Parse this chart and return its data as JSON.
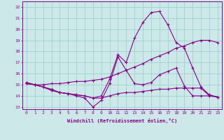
{
  "xlabel": "Windchill (Refroidissement éolien,°C)",
  "bg_color": "#cce8e8",
  "line_color": "#880088",
  "grid_color": "#99cccc",
  "xlim": [
    -0.5,
    23.5
  ],
  "ylim": [
    12.8,
    22.5
  ],
  "xticks": [
    0,
    1,
    2,
    3,
    4,
    5,
    6,
    7,
    8,
    9,
    10,
    11,
    12,
    13,
    14,
    15,
    16,
    17,
    18,
    19,
    20,
    21,
    22,
    23
  ],
  "yticks": [
    13,
    14,
    15,
    16,
    17,
    18,
    19,
    20,
    21,
    22
  ],
  "line1_x": [
    0,
    1,
    2,
    3,
    4,
    5,
    6,
    7,
    8,
    9,
    10,
    11,
    12,
    13,
    14,
    15,
    16,
    17,
    18,
    19,
    20,
    21,
    22,
    23
  ],
  "line1_y": [
    15.2,
    15.0,
    14.8,
    14.5,
    14.3,
    14.2,
    14.0,
    13.8,
    13.0,
    13.6,
    15.1,
    17.5,
    16.3,
    15.1,
    15.0,
    15.2,
    15.9,
    16.2,
    16.5,
    14.9,
    14.0,
    14.0,
    14.0,
    13.9
  ],
  "line2_x": [
    0,
    1,
    2,
    3,
    4,
    5,
    6,
    7,
    8,
    9,
    10,
    11,
    12,
    13,
    14,
    15,
    16,
    17,
    18,
    19,
    20,
    21,
    22,
    23
  ],
  "line2_y": [
    15.2,
    15.0,
    14.8,
    14.5,
    14.3,
    14.2,
    14.1,
    14.0,
    13.8,
    14.0,
    15.5,
    17.7,
    17.0,
    19.2,
    20.6,
    21.5,
    21.6,
    20.4,
    18.8,
    18.3,
    16.5,
    14.8,
    14.1,
    13.9
  ],
  "line3_x": [
    0,
    1,
    2,
    3,
    4,
    5,
    6,
    7,
    8,
    9,
    10,
    11,
    12,
    13,
    14,
    15,
    16,
    17,
    18,
    19,
    20,
    21,
    22,
    23
  ],
  "line3_y": [
    15.1,
    15.0,
    15.0,
    15.1,
    15.1,
    15.2,
    15.3,
    15.3,
    15.4,
    15.5,
    15.7,
    16.0,
    16.3,
    16.6,
    16.9,
    17.3,
    17.6,
    17.9,
    18.3,
    18.5,
    18.8,
    19.0,
    19.0,
    18.8
  ],
  "line4_x": [
    0,
    1,
    2,
    3,
    4,
    5,
    6,
    7,
    8,
    9,
    10,
    11,
    12,
    13,
    14,
    15,
    16,
    17,
    18,
    19,
    20,
    21,
    22,
    23
  ],
  "line4_y": [
    15.1,
    15.0,
    14.8,
    14.6,
    14.3,
    14.2,
    14.1,
    14.0,
    13.8,
    13.8,
    14.0,
    14.2,
    14.3,
    14.3,
    14.4,
    14.5,
    14.6,
    14.6,
    14.7,
    14.7,
    14.7,
    14.7,
    14.0,
    13.9
  ]
}
